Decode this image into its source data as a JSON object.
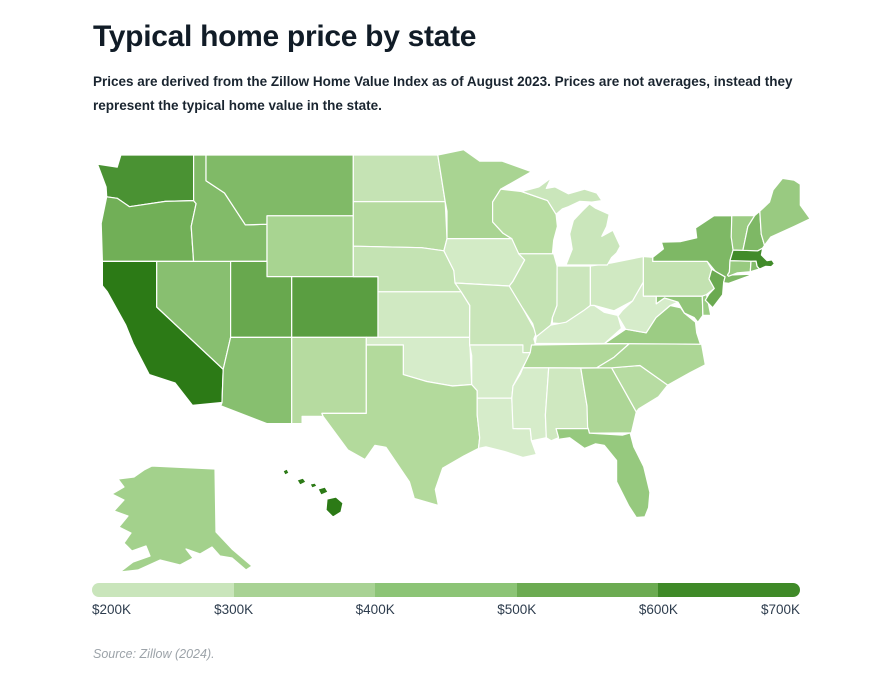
{
  "header": {
    "title": "Typical home price by state",
    "subtitle": "Prices are derived from the Zillow Home Value Index as of August 2023. Prices are not averages, instead they represent the typical home value in the state."
  },
  "legend": {
    "labels": [
      "$200K",
      "$300K",
      "$400K",
      "$500K",
      "$600K",
      "$700K"
    ],
    "segment_colors": [
      "#c9e5bb",
      "#a8d294",
      "#8cc476",
      "#6cab52",
      "#3f8a28"
    ]
  },
  "source_note": "Source: Zillow (2024).",
  "color_scale": {
    "unit": "USD thousands",
    "stops": [
      {
        "value": 200,
        "color": "#d6ecca"
      },
      {
        "value": 300,
        "color": "#b3da9c"
      },
      {
        "value": 400,
        "color": "#93c77b"
      },
      {
        "value": 500,
        "color": "#6cab52"
      },
      {
        "value": 600,
        "color": "#3f8a28"
      },
      {
        "value": 700,
        "color": "#2c7a16"
      }
    ]
  },
  "chart_data": {
    "type": "choropleth",
    "title": "Typical home price by state",
    "unit": "USD thousands",
    "legend_range": [
      200,
      700
    ],
    "source": "Zillow Home Value Index, August 2023",
    "states": [
      {
        "code": "AL",
        "name": "Alabama",
        "value": 221
      },
      {
        "code": "AK",
        "name": "Alaska",
        "value": 349
      },
      {
        "code": "AZ",
        "name": "Arizona",
        "value": 430
      },
      {
        "code": "AR",
        "name": "Arkansas",
        "value": 198
      },
      {
        "code": "CA",
        "name": "California",
        "value": 743
      },
      {
        "code": "CO",
        "name": "Colorado",
        "value": 540
      },
      {
        "code": "CT",
        "name": "Connecticut",
        "value": 384
      },
      {
        "code": "DE",
        "name": "Delaware",
        "value": 374
      },
      {
        "code": "FL",
        "name": "Florida",
        "value": 392
      },
      {
        "code": "GA",
        "name": "Georgia",
        "value": 319
      },
      {
        "code": "HI",
        "name": "Hawaii",
        "value": 835
      },
      {
        "code": "ID",
        "name": "Idaho",
        "value": 444
      },
      {
        "code": "IL",
        "name": "Illinois",
        "value": 251
      },
      {
        "code": "IN",
        "name": "Indiana",
        "value": 231
      },
      {
        "code": "IA",
        "name": "Iowa",
        "value": 208
      },
      {
        "code": "KS",
        "name": "Kansas",
        "value": 217
      },
      {
        "code": "KY",
        "name": "Kentucky",
        "value": 196
      },
      {
        "code": "LA",
        "name": "Louisiana",
        "value": 198
      },
      {
        "code": "ME",
        "name": "Maine",
        "value": 382
      },
      {
        "code": "MD",
        "name": "Maryland",
        "value": 406
      },
      {
        "code": "MA",
        "name": "Massachusetts",
        "value": 596
      },
      {
        "code": "MI",
        "name": "Michigan",
        "value": 233
      },
      {
        "code": "MN",
        "name": "Minnesota",
        "value": 331
      },
      {
        "code": "MS",
        "name": "Mississippi",
        "value": 171
      },
      {
        "code": "MO",
        "name": "Missouri",
        "value": 238
      },
      {
        "code": "MT",
        "name": "Montana",
        "value": 448
      },
      {
        "code": "NE",
        "name": "Nebraska",
        "value": 251
      },
      {
        "code": "NV",
        "name": "Nevada",
        "value": 427
      },
      {
        "code": "NH",
        "name": "New Hampshire",
        "value": 454
      },
      {
        "code": "NJ",
        "name": "New Jersey",
        "value": 503
      },
      {
        "code": "NM",
        "name": "New Mexico",
        "value": 292
      },
      {
        "code": "NY",
        "name": "New York",
        "value": 453
      },
      {
        "code": "NC",
        "name": "North Carolina",
        "value": 321
      },
      {
        "code": "ND",
        "name": "North Dakota",
        "value": 248
      },
      {
        "code": "OH",
        "name": "Ohio",
        "value": 217
      },
      {
        "code": "OK",
        "name": "Oklahoma",
        "value": 199
      },
      {
        "code": "OR",
        "name": "Oregon",
        "value": 487
      },
      {
        "code": "PA",
        "name": "Pennsylvania",
        "value": 255
      },
      {
        "code": "RI",
        "name": "Rhode Island",
        "value": 438
      },
      {
        "code": "SC",
        "name": "South Carolina",
        "value": 288
      },
      {
        "code": "SD",
        "name": "South Dakota",
        "value": 292
      },
      {
        "code": "TN",
        "name": "Tennessee",
        "value": 309
      },
      {
        "code": "TX",
        "name": "Texas",
        "value": 301
      },
      {
        "code": "UT",
        "name": "Utah",
        "value": 510
      },
      {
        "code": "VT",
        "name": "Vermont",
        "value": 373
      },
      {
        "code": "VA",
        "name": "Virginia",
        "value": 373
      },
      {
        "code": "WA",
        "name": "Washington",
        "value": 575
      },
      {
        "code": "WV",
        "name": "West Virginia",
        "value": 155
      },
      {
        "code": "WI",
        "name": "Wisconsin",
        "value": 286
      },
      {
        "code": "WY",
        "name": "Wyoming",
        "value": 334
      }
    ]
  }
}
